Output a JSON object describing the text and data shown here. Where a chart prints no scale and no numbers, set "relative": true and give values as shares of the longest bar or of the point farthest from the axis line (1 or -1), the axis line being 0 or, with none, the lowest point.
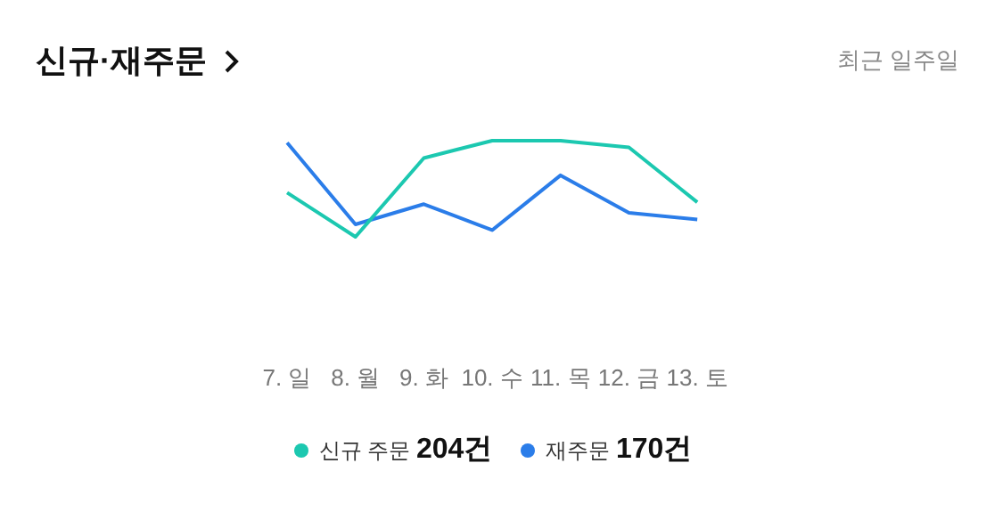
{
  "chart_data": {
    "type": "line",
    "title": "신규·재주문",
    "subtitle": "최근 일주일",
    "relative": true,
    "categories": [
      "7. 일",
      "8. 월",
      "9. 화",
      "10. 수",
      "11. 목",
      "12. 금",
      "13. 토"
    ],
    "legend": "bottom",
    "marker": "none",
    "grid": false,
    "series": [
      {
        "name": "신규 주문 204건",
        "color": "#1cc8b0",
        "values": [
          0.46,
          0,
          0.82,
          1,
          1,
          0.93,
          0.36
        ]
      },
      {
        "name": "재주문 170건",
        "color": "#2b7de9",
        "values": [
          0.98,
          0.13,
          0.34,
          0.07,
          0.64,
          0.25,
          0.18
        ]
      }
    ]
  }
}
